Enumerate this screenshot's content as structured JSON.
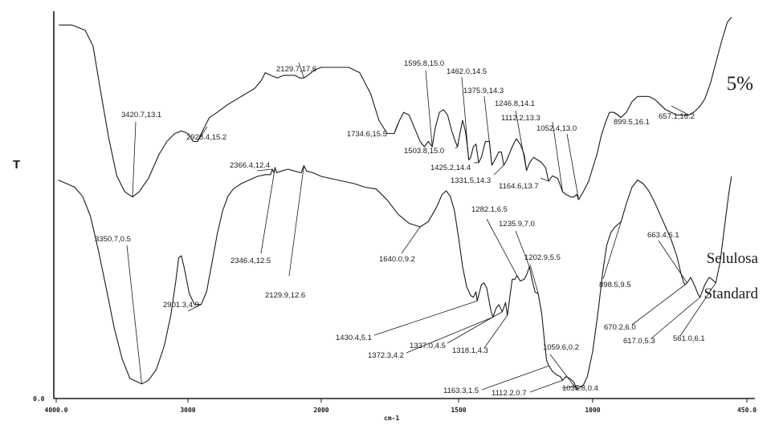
{
  "chart_data": {
    "type": "line",
    "title": "",
    "ylabel": "T",
    "xlabel": "cm-1",
    "x_reversed": true,
    "xlim": [
      4000.0,
      450.0
    ],
    "x_ticks": [
      {
        "value": 4000,
        "label": "4000.0"
      },
      {
        "value": 3000,
        "label": "3000"
      },
      {
        "value": 2000,
        "label": "2000"
      },
      {
        "value": 1500,
        "label": "1500"
      },
      {
        "value": 1000,
        "label": "1000"
      },
      {
        "value": 450,
        "label": "450.0"
      }
    ],
    "y_ticks": [
      {
        "value": 0,
        "label": "0.0"
      }
    ],
    "series": [
      {
        "name": "5%",
        "name_parts": [
          "5%"
        ],
        "points": [
          [
            3980,
            19.6
          ],
          [
            3880,
            19.6
          ],
          [
            3780,
            19.4
          ],
          [
            3720,
            18.8
          ],
          [
            3660,
            17.0
          ],
          [
            3600,
            15.3
          ],
          [
            3540,
            13.9
          ],
          [
            3480,
            13.3
          ],
          [
            3420.7,
            13.1
          ],
          [
            3370,
            13.3
          ],
          [
            3300,
            13.8
          ],
          [
            3220,
            14.7
          ],
          [
            3160,
            15.2
          ],
          [
            3100,
            15.5
          ],
          [
            3050,
            15.6
          ],
          [
            3000,
            15.5
          ],
          [
            2960,
            15.2
          ],
          [
            2928.4,
            15.2
          ],
          [
            2890,
            15.6
          ],
          [
            2840,
            16.1
          ],
          [
            2780,
            16.3
          ],
          [
            2700,
            16.6
          ],
          [
            2600,
            16.9
          ],
          [
            2500,
            17.2
          ],
          [
            2450,
            17.5
          ],
          [
            2420,
            17.8
          ],
          [
            2380,
            17.7
          ],
          [
            2330,
            17.6
          ],
          [
            2280,
            17.7
          ],
          [
            2200,
            17.7
          ],
          [
            2160,
            17.6
          ],
          [
            2129.7,
            17.6
          ],
          [
            2100,
            17.7
          ],
          [
            2050,
            17.9
          ],
          [
            2000,
            18.0
          ],
          [
            1950,
            18.0
          ],
          [
            1900,
            18.0
          ],
          [
            1860,
            17.8
          ],
          [
            1820,
            17.0
          ],
          [
            1790,
            16.0
          ],
          [
            1760,
            15.5
          ],
          [
            1734.6,
            15.5
          ],
          [
            1715,
            16.0
          ],
          [
            1700,
            16.3
          ],
          [
            1680,
            16.2
          ],
          [
            1660,
            15.7
          ],
          [
            1640,
            15.2
          ],
          [
            1625,
            15.0
          ],
          [
            1610,
            15.2
          ],
          [
            1595.8,
            15.0
          ],
          [
            1585,
            15.7
          ],
          [
            1570,
            16.3
          ],
          [
            1555,
            16.4
          ],
          [
            1540,
            16.2
          ],
          [
            1525,
            15.6
          ],
          [
            1512,
            15.2
          ],
          [
            1503.8,
            15.0
          ],
          [
            1495,
            15.5
          ],
          [
            1485,
            16.0
          ],
          [
            1475,
            15.6
          ],
          [
            1468,
            15.1
          ],
          [
            1462.0,
            14.5
          ],
          [
            1455,
            14.6
          ],
          [
            1445,
            15.0
          ],
          [
            1435,
            15.1
          ],
          [
            1425.2,
            14.4
          ],
          [
            1415,
            14.6
          ],
          [
            1400,
            15.2
          ],
          [
            1385,
            15.2
          ],
          [
            1375.9,
            14.3
          ],
          [
            1365,
            14.5
          ],
          [
            1350,
            14.8
          ],
          [
            1340,
            14.8
          ],
          [
            1331.5,
            14.3
          ],
          [
            1320,
            14.5
          ],
          [
            1300,
            15.0
          ],
          [
            1285,
            15.3
          ],
          [
            1270,
            15.1
          ],
          [
            1255,
            14.7
          ],
          [
            1246.8,
            14.1
          ],
          [
            1235,
            14.4
          ],
          [
            1220,
            14.6
          ],
          [
            1205,
            14.5
          ],
          [
            1190,
            14.4
          ],
          [
            1175,
            14.2
          ],
          [
            1164.6,
            13.7
          ],
          [
            1150,
            13.9
          ],
          [
            1130,
            13.8
          ],
          [
            1112.2,
            13.3
          ],
          [
            1100,
            13.2
          ],
          [
            1080,
            13.1
          ],
          [
            1070,
            13.1
          ],
          [
            1060,
            13.2
          ],
          [
            1052.4,
            13.0
          ],
          [
            1035,
            13.3
          ],
          [
            1015,
            13.7
          ],
          [
            1000,
            14.2
          ],
          [
            985,
            14.7
          ],
          [
            970,
            15.4
          ],
          [
            955,
            15.9
          ],
          [
            940,
            16.3
          ],
          [
            925,
            16.3
          ],
          [
            910,
            16.2
          ],
          [
            899.5,
            16.1
          ],
          [
            880,
            16.3
          ],
          [
            860,
            16.7
          ],
          [
            840,
            16.9
          ],
          [
            820,
            16.9
          ],
          [
            800,
            16.9
          ],
          [
            780,
            16.8
          ],
          [
            760,
            16.6
          ],
          [
            740,
            16.4
          ],
          [
            720,
            16.3
          ],
          [
            700,
            16.2
          ],
          [
            680,
            16.2
          ],
          [
            657.1,
            16.2
          ],
          [
            640,
            16.3
          ],
          [
            620,
            16.5
          ],
          [
            600,
            16.8
          ],
          [
            580,
            17.4
          ],
          [
            560,
            18.2
          ],
          [
            540,
            19.0
          ],
          [
            520,
            19.7
          ],
          [
            505,
            19.9
          ]
        ]
      },
      {
        "name": "Selulosa Standard",
        "name_parts": [
          "Selulosa",
          "Standard"
        ],
        "points": [
          [
            3985,
            11.8
          ],
          [
            3920,
            11.6
          ],
          [
            3860,
            11.4
          ],
          [
            3800,
            10.9
          ],
          [
            3740,
            9.8
          ],
          [
            3680,
            7.9
          ],
          [
            3620,
            5.8
          ],
          [
            3560,
            3.6
          ],
          [
            3500,
            1.9
          ],
          [
            3440,
            0.8
          ],
          [
            3380,
            0.6
          ],
          [
            3350.7,
            0.5
          ],
          [
            3300,
            0.7
          ],
          [
            3240,
            1.3
          ],
          [
            3180,
            2.6
          ],
          [
            3130,
            4.3
          ],
          [
            3090,
            6.3
          ],
          [
            3070,
            7.5
          ],
          [
            3050,
            7.6
          ],
          [
            3030,
            7.0
          ],
          [
            2990,
            5.5
          ],
          [
            2950,
            4.9
          ],
          [
            2901.3,
            4.9
          ],
          [
            2860,
            5.6
          ],
          [
            2820,
            7.2
          ],
          [
            2780,
            8.8
          ],
          [
            2740,
            10.1
          ],
          [
            2700,
            10.9
          ],
          [
            2660,
            11.3
          ],
          [
            2600,
            11.6
          ],
          [
            2540,
            11.8
          ],
          [
            2480,
            12.0
          ],
          [
            2420,
            12.1
          ],
          [
            2380,
            12.1
          ],
          [
            2366.4,
            12.4
          ],
          [
            2355,
            12.2
          ],
          [
            2346.4,
            12.5
          ],
          [
            2335,
            12.2
          ],
          [
            2300,
            12.3
          ],
          [
            2250,
            12.4
          ],
          [
            2200,
            12.3
          ],
          [
            2150,
            12.2
          ],
          [
            2129.9,
            12.6
          ],
          [
            2110,
            12.3
          ],
          [
            2060,
            12.2
          ],
          [
            2000,
            12.0
          ],
          [
            1940,
            11.8
          ],
          [
            1880,
            11.6
          ],
          [
            1840,
            11.4
          ],
          [
            1800,
            11.3
          ],
          [
            1760,
            10.7
          ],
          [
            1720,
            9.9
          ],
          [
            1680,
            9.4
          ],
          [
            1640.0,
            9.2
          ],
          [
            1610,
            9.5
          ],
          [
            1580,
            10.3
          ],
          [
            1560,
            11.0
          ],
          [
            1545,
            11.2
          ],
          [
            1530,
            10.9
          ],
          [
            1515,
            10.1
          ],
          [
            1500,
            8.6
          ],
          [
            1485,
            7.0
          ],
          [
            1470,
            5.9
          ],
          [
            1455,
            5.4
          ],
          [
            1445,
            5.3
          ],
          [
            1435,
            5.6
          ],
          [
            1430.4,
            5.1
          ],
          [
            1425,
            5.4
          ],
          [
            1415,
            6.0
          ],
          [
            1405,
            6.1
          ],
          [
            1395,
            5.8
          ],
          [
            1385,
            5.0
          ],
          [
            1380,
            4.6
          ],
          [
            1372.3,
            4.2
          ],
          [
            1360,
            4.7
          ],
          [
            1350,
            4.9
          ],
          [
            1337.0,
            4.5
          ],
          [
            1325,
            5.0
          ],
          [
            1318.1,
            4.3
          ],
          [
            1310,
            5.2
          ],
          [
            1300,
            6.3
          ],
          [
            1290,
            6.3
          ],
          [
            1282.1,
            6.5
          ],
          [
            1270,
            6.2
          ],
          [
            1255,
            6.3
          ],
          [
            1245,
            6.6
          ],
          [
            1235.9,
            7.0
          ],
          [
            1225,
            6.2
          ],
          [
            1215,
            5.6
          ],
          [
            1202.9,
            5.5
          ],
          [
            1190,
            4.4
          ],
          [
            1180,
            2.9
          ],
          [
            1172,
            1.8
          ],
          [
            1163.3,
            1.5
          ],
          [
            1150,
            1.2
          ],
          [
            1135,
            1.0
          ],
          [
            1120,
            0.9
          ],
          [
            1112.2,
            0.7
          ],
          [
            1100,
            0.9
          ],
          [
            1085,
            0.8
          ],
          [
            1070,
            0.6
          ],
          [
            1059.6,
            0.2
          ],
          [
            1048,
            0.3
          ],
          [
            1035.8,
            0.4
          ],
          [
            1020,
            0.9
          ],
          [
            1000,
            2.3
          ],
          [
            980,
            4.6
          ],
          [
            965,
            6.6
          ],
          [
            950,
            8.2
          ],
          [
            935,
            8.9
          ],
          [
            920,
            9.2
          ],
          [
            898.5,
            9.5
          ],
          [
            880,
            10.5
          ],
          [
            860,
            11.4
          ],
          [
            840,
            11.8
          ],
          [
            820,
            11.6
          ],
          [
            800,
            11.2
          ],
          [
            780,
            10.6
          ],
          [
            760,
            9.9
          ],
          [
            740,
            9.2
          ],
          [
            720,
            8.5
          ],
          [
            700,
            7.6
          ],
          [
            685,
            6.6
          ],
          [
            675,
            6.1
          ],
          [
            670.2,
            6.0
          ],
          [
            663.4,
            6.1
          ],
          [
            650,
            6.4
          ],
          [
            635,
            5.9
          ],
          [
            625,
            5.5
          ],
          [
            617.0,
            5.3
          ],
          [
            600,
            6.0
          ],
          [
            585,
            6.4
          ],
          [
            575,
            6.3
          ],
          [
            561.0,
            6.1
          ],
          [
            545,
            7.3
          ],
          [
            530,
            9.2
          ],
          [
            515,
            11.0
          ],
          [
            505,
            12.0
          ]
        ]
      }
    ],
    "annotations": [
      {
        "text": "3420.7,13.1"
      },
      {
        "text": "2928.4,15.2"
      },
      {
        "text": "2129.7,17.6"
      },
      {
        "text": "1734.6,15.5"
      },
      {
        "text": "1595.8,15.0"
      },
      {
        "text": "1503.8,15.0"
      },
      {
        "text": "1462.0,14.5"
      },
      {
        "text": "1425.2,14.4"
      },
      {
        "text": "1375.9,14.3"
      },
      {
        "text": "1331.5,14.3"
      },
      {
        "text": "1246.8,14.1"
      },
      {
        "text": "1164.6,13.7"
      },
      {
        "text": "1112.2,13.3"
      },
      {
        "text": "1052.4,13.0"
      },
      {
        "text": "899.5,16.1"
      },
      {
        "text": "657.1,16.2"
      },
      {
        "text": "3350.7,0.5"
      },
      {
        "text": "2901.3,4.9"
      },
      {
        "text": "2366.4,12.4"
      },
      {
        "text": "2346.4,12.5"
      },
      {
        "text": "2129.9,12.6"
      },
      {
        "text": "1640.0,9.2"
      },
      {
        "text": "1282.1,6.5"
      },
      {
        "text": "1235.9,7.0"
      },
      {
        "text": "1202.9,5.5"
      },
      {
        "text": "1430.4,5.1"
      },
      {
        "text": "1372.3,4.2"
      },
      {
        "text": "1337.0,4.5"
      },
      {
        "text": "1318.1,4.3"
      },
      {
        "text": "1059.6,0.2"
      },
      {
        "text": "1163.3,1.5"
      },
      {
        "text": "1112.2,0.7"
      },
      {
        "text": "1035.8,0.4"
      },
      {
        "text": "898.5,9.5"
      },
      {
        "text": "663.4,6.1"
      },
      {
        "text": "670.2,6.0"
      },
      {
        "text": "617.0,5.3"
      },
      {
        "text": "561.0,6.1"
      }
    ]
  }
}
